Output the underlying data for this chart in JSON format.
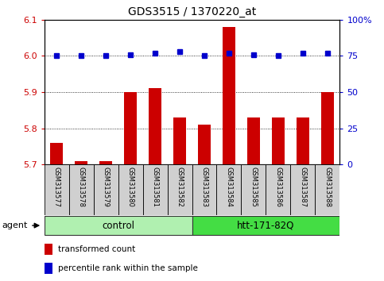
{
  "title": "GDS3515 / 1370220_at",
  "samples": [
    "GSM313577",
    "GSM313578",
    "GSM313579",
    "GSM313580",
    "GSM313581",
    "GSM313582",
    "GSM313583",
    "GSM313584",
    "GSM313585",
    "GSM313586",
    "GSM313587",
    "GSM313588"
  ],
  "bar_values": [
    5.76,
    5.71,
    5.71,
    5.9,
    5.91,
    5.83,
    5.81,
    6.08,
    5.83,
    5.83,
    5.83,
    5.9
  ],
  "dot_values": [
    75,
    75,
    75,
    76,
    77,
    78,
    75,
    77,
    76,
    75,
    77,
    77
  ],
  "groups": [
    {
      "label": "control",
      "start": 0,
      "end": 5,
      "color": "#b0f0b0"
    },
    {
      "label": "htt-171-82Q",
      "start": 6,
      "end": 11,
      "color": "#44dd44"
    }
  ],
  "ylim_left": [
    5.7,
    6.1
  ],
  "ylim_right": [
    0,
    100
  ],
  "yticks_left": [
    5.7,
    5.8,
    5.9,
    6.0,
    6.1
  ],
  "yticks_right": [
    0,
    25,
    50,
    75,
    100
  ],
  "bar_color": "#cc0000",
  "dot_color": "#0000cc",
  "bar_width": 0.5,
  "background_color": "#ffffff",
  "legend_items": [
    "transformed count",
    "percentile rank within the sample"
  ],
  "legend_colors": [
    "#cc0000",
    "#0000cc"
  ],
  "agent_label": "agent",
  "tick_label_color_left": "#cc0000",
  "tick_label_color_right": "#0000cc",
  "sample_box_color": "#d0d0d0",
  "figsize": [
    4.83,
    3.54
  ],
  "dpi": 100
}
